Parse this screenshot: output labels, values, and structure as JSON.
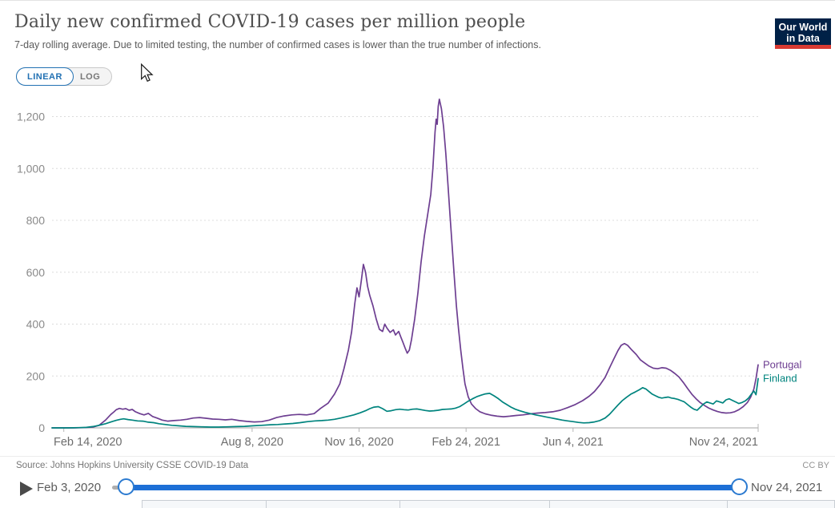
{
  "header": {
    "title": "Daily new confirmed COVID-19 cases per million people",
    "subtitle": "7-day rolling average. Due to limited testing, the number of confirmed cases is lower than the true number of infections.",
    "logo": {
      "line1": "Our World",
      "line2": "in Data",
      "bg_color": "#002147",
      "accent_color": "#d93a32"
    }
  },
  "toolbar": {
    "linear_label": "LINEAR",
    "log_label": "LOG",
    "active_scale": "LINEAR",
    "active_color": "#2271b3"
  },
  "footer": {
    "source": "Source: Johns Hopkins University CSSE COVID-19 Data",
    "license": "CC BY"
  },
  "timeline": {
    "start_label": "Feb 3, 2020",
    "end_label": "Nov 24, 2021",
    "play_icon": "play-icon",
    "slider_color": "#1d6fd6"
  },
  "chart_data": {
    "type": "line",
    "title": "Daily new confirmed COVID-19 cases per million people",
    "xlabel": "",
    "ylabel": "",
    "grid": "dashed",
    "legend_position": "right-end-labels",
    "x_axis": {
      "start_date": "Feb 3, 2020",
      "end_date": "Nov 24, 2021",
      "total_days": 660,
      "ticks": [
        {
          "label": "Feb 14, 2020",
          "day": 11
        },
        {
          "label": "Aug 8, 2020",
          "day": 187
        },
        {
          "label": "Nov 16, 2020",
          "day": 287
        },
        {
          "label": "Feb 24, 2021",
          "day": 387
        },
        {
          "label": "Jun 4, 2021",
          "day": 487
        },
        {
          "label": "Nov 24, 2021",
          "day": 660
        }
      ]
    },
    "y_axis": {
      "min": 0,
      "max": 1200,
      "ticks": [
        {
          "label": "0",
          "value": 0
        },
        {
          "label": "200",
          "value": 200
        },
        {
          "label": "400",
          "value": 400
        },
        {
          "label": "600",
          "value": 600
        },
        {
          "label": "800",
          "value": 800
        },
        {
          "label": "1,000",
          "value": 1000
        },
        {
          "label": "1,200",
          "value": 1200
        }
      ]
    },
    "series": [
      {
        "name": "Portugal",
        "color": "#6d3e91",
        "points": [
          [
            0,
            0
          ],
          [
            10,
            0
          ],
          [
            20,
            0
          ],
          [
            30,
            1
          ],
          [
            38,
            3
          ],
          [
            44,
            10
          ],
          [
            50,
            30
          ],
          [
            55,
            52
          ],
          [
            58,
            62
          ],
          [
            60,
            70
          ],
          [
            63,
            75
          ],
          [
            66,
            72
          ],
          [
            69,
            74
          ],
          [
            72,
            68
          ],
          [
            75,
            71
          ],
          [
            78,
            62
          ],
          [
            82,
            55
          ],
          [
            86,
            50
          ],
          [
            90,
            56
          ],
          [
            94,
            44
          ],
          [
            98,
            38
          ],
          [
            103,
            30
          ],
          [
            108,
            26
          ],
          [
            114,
            28
          ],
          [
            120,
            30
          ],
          [
            126,
            33
          ],
          [
            132,
            38
          ],
          [
            138,
            40
          ],
          [
            144,
            37
          ],
          [
            150,
            34
          ],
          [
            156,
            33
          ],
          [
            162,
            31
          ],
          [
            168,
            33
          ],
          [
            175,
            28
          ],
          [
            182,
            25
          ],
          [
            189,
            23
          ],
          [
            196,
            24
          ],
          [
            203,
            30
          ],
          [
            210,
            40
          ],
          [
            217,
            46
          ],
          [
            224,
            50
          ],
          [
            231,
            52
          ],
          [
            238,
            50
          ],
          [
            245,
            55
          ],
          [
            251,
            75
          ],
          [
            258,
            95
          ],
          [
            264,
            130
          ],
          [
            269,
            170
          ],
          [
            273,
            230
          ],
          [
            277,
            300
          ],
          [
            280,
            370
          ],
          [
            283,
            480
          ],
          [
            285,
            540
          ],
          [
            287,
            505
          ],
          [
            289,
            565
          ],
          [
            291,
            630
          ],
          [
            293,
            600
          ],
          [
            295,
            545
          ],
          [
            297,
            510
          ],
          [
            300,
            470
          ],
          [
            303,
            420
          ],
          [
            306,
            380
          ],
          [
            309,
            372
          ],
          [
            311,
            400
          ],
          [
            313,
            385
          ],
          [
            316,
            368
          ],
          [
            319,
            378
          ],
          [
            321,
            358
          ],
          [
            324,
            372
          ],
          [
            326,
            350
          ],
          [
            328,
            330
          ],
          [
            330,
            308
          ],
          [
            332,
            288
          ],
          [
            334,
            300
          ],
          [
            336,
            340
          ],
          [
            339,
            420
          ],
          [
            342,
            520
          ],
          [
            345,
            640
          ],
          [
            348,
            740
          ],
          [
            351,
            820
          ],
          [
            354,
            900
          ],
          [
            356,
            1000
          ],
          [
            358,
            1140
          ],
          [
            359,
            1190
          ],
          [
            360,
            1170
          ],
          [
            361,
            1240
          ],
          [
            362,
            1267
          ],
          [
            364,
            1230
          ],
          [
            366,
            1160
          ],
          [
            368,
            1060
          ],
          [
            370,
            940
          ],
          [
            372,
            820
          ],
          [
            374,
            700
          ],
          [
            376,
            580
          ],
          [
            378,
            470
          ],
          [
            380,
            380
          ],
          [
            382,
            300
          ],
          [
            384,
            230
          ],
          [
            386,
            170
          ],
          [
            389,
            120
          ],
          [
            392,
            92
          ],
          [
            396,
            74
          ],
          [
            400,
            62
          ],
          [
            405,
            54
          ],
          [
            410,
            49
          ],
          [
            416,
            45
          ],
          [
            422,
            43
          ],
          [
            428,
            45
          ],
          [
            434,
            48
          ],
          [
            440,
            50
          ],
          [
            447,
            54
          ],
          [
            454,
            57
          ],
          [
            461,
            59
          ],
          [
            468,
            62
          ],
          [
            475,
            68
          ],
          [
            482,
            78
          ],
          [
            489,
            90
          ],
          [
            496,
            105
          ],
          [
            502,
            122
          ],
          [
            507,
            140
          ],
          [
            512,
            165
          ],
          [
            517,
            195
          ],
          [
            521,
            230
          ],
          [
            525,
            265
          ],
          [
            529,
            298
          ],
          [
            532,
            318
          ],
          [
            535,
            325
          ],
          [
            538,
            318
          ],
          [
            542,
            300
          ],
          [
            546,
            283
          ],
          [
            550,
            262
          ],
          [
            554,
            250
          ],
          [
            558,
            238
          ],
          [
            562,
            230
          ],
          [
            566,
            228
          ],
          [
            570,
            232
          ],
          [
            574,
            230
          ],
          [
            578,
            222
          ],
          [
            582,
            210
          ],
          [
            586,
            196
          ],
          [
            590,
            175
          ],
          [
            594,
            152
          ],
          [
            598,
            130
          ],
          [
            602,
            112
          ],
          [
            606,
            97
          ],
          [
            610,
            86
          ],
          [
            614,
            76
          ],
          [
            618,
            69
          ],
          [
            622,
            63
          ],
          [
            626,
            59
          ],
          [
            630,
            57
          ],
          [
            634,
            58
          ],
          [
            638,
            62
          ],
          [
            642,
            70
          ],
          [
            646,
            82
          ],
          [
            650,
            98
          ],
          [
            653,
            118
          ],
          [
            656,
            150
          ],
          [
            658,
            190
          ],
          [
            660,
            243
          ]
        ]
      },
      {
        "name": "Finland",
        "color": "#00847e",
        "points": [
          [
            0,
            0
          ],
          [
            15,
            0
          ],
          [
            25,
            1
          ],
          [
            32,
            2
          ],
          [
            38,
            5
          ],
          [
            44,
            10
          ],
          [
            50,
            16
          ],
          [
            56,
            24
          ],
          [
            60,
            29
          ],
          [
            64,
            33
          ],
          [
            67,
            35
          ],
          [
            71,
            32
          ],
          [
            75,
            30
          ],
          [
            80,
            27
          ],
          [
            85,
            26
          ],
          [
            90,
            22
          ],
          [
            95,
            20
          ],
          [
            100,
            16
          ],
          [
            106,
            13
          ],
          [
            112,
            10
          ],
          [
            118,
            8
          ],
          [
            125,
            6
          ],
          [
            132,
            5
          ],
          [
            140,
            4
          ],
          [
            148,
            3
          ],
          [
            156,
            3
          ],
          [
            164,
            4
          ],
          [
            172,
            5
          ],
          [
            180,
            6
          ],
          [
            188,
            8
          ],
          [
            196,
            10
          ],
          [
            204,
            12
          ],
          [
            211,
            13
          ],
          [
            218,
            15
          ],
          [
            225,
            17
          ],
          [
            232,
            20
          ],
          [
            239,
            24
          ],
          [
            246,
            27
          ],
          [
            252,
            28
          ],
          [
            258,
            30
          ],
          [
            264,
            33
          ],
          [
            270,
            38
          ],
          [
            276,
            44
          ],
          [
            282,
            50
          ],
          [
            288,
            58
          ],
          [
            293,
            66
          ],
          [
            297,
            74
          ],
          [
            301,
            80
          ],
          [
            305,
            82
          ],
          [
            309,
            74
          ],
          [
            313,
            64
          ],
          [
            317,
            66
          ],
          [
            321,
            70
          ],
          [
            325,
            72
          ],
          [
            329,
            70
          ],
          [
            333,
            69
          ],
          [
            337,
            72
          ],
          [
            341,
            73
          ],
          [
            345,
            70
          ],
          [
            349,
            67
          ],
          [
            353,
            65
          ],
          [
            357,
            66
          ],
          [
            361,
            68
          ],
          [
            365,
            71
          ],
          [
            369,
            72
          ],
          [
            373,
            73
          ],
          [
            377,
            76
          ],
          [
            381,
            82
          ],
          [
            385,
            92
          ],
          [
            389,
            103
          ],
          [
            393,
            112
          ],
          [
            397,
            120
          ],
          [
            401,
            126
          ],
          [
            405,
            131
          ],
          [
            409,
            133
          ],
          [
            413,
            124
          ],
          [
            417,
            113
          ],
          [
            421,
            100
          ],
          [
            425,
            90
          ],
          [
            429,
            80
          ],
          [
            433,
            72
          ],
          [
            437,
            66
          ],
          [
            442,
            60
          ],
          [
            447,
            55
          ],
          [
            452,
            50
          ],
          [
            457,
            46
          ],
          [
            462,
            42
          ],
          [
            467,
            38
          ],
          [
            472,
            34
          ],
          [
            477,
            30
          ],
          [
            482,
            27
          ],
          [
            487,
            24
          ],
          [
            492,
            21
          ],
          [
            497,
            19
          ],
          [
            502,
            20
          ],
          [
            507,
            23
          ],
          [
            512,
            28
          ],
          [
            517,
            38
          ],
          [
            521,
            52
          ],
          [
            525,
            70
          ],
          [
            529,
            88
          ],
          [
            533,
            105
          ],
          [
            537,
            118
          ],
          [
            541,
            130
          ],
          [
            545,
            138
          ],
          [
            549,
            147
          ],
          [
            552,
            155
          ],
          [
            555,
            150
          ],
          [
            558,
            140
          ],
          [
            561,
            130
          ],
          [
            564,
            124
          ],
          [
            567,
            118
          ],
          [
            570,
            115
          ],
          [
            573,
            117
          ],
          [
            576,
            119
          ],
          [
            579,
            115
          ],
          [
            582,
            113
          ],
          [
            585,
            110
          ],
          [
            588,
            105
          ],
          [
            591,
            100
          ],
          [
            594,
            90
          ],
          [
            597,
            80
          ],
          [
            600,
            72
          ],
          [
            603,
            68
          ],
          [
            606,
            80
          ],
          [
            609,
            92
          ],
          [
            612,
            100
          ],
          [
            615,
            96
          ],
          [
            618,
            92
          ],
          [
            621,
            104
          ],
          [
            624,
            100
          ],
          [
            627,
            96
          ],
          [
            630,
            108
          ],
          [
            633,
            112
          ],
          [
            636,
            106
          ],
          [
            639,
            100
          ],
          [
            642,
            94
          ],
          [
            645,
            98
          ],
          [
            648,
            104
          ],
          [
            651,
            115
          ],
          [
            654,
            132
          ],
          [
            656,
            142
          ],
          [
            658,
            128
          ],
          [
            660,
            190
          ]
        ]
      }
    ]
  }
}
